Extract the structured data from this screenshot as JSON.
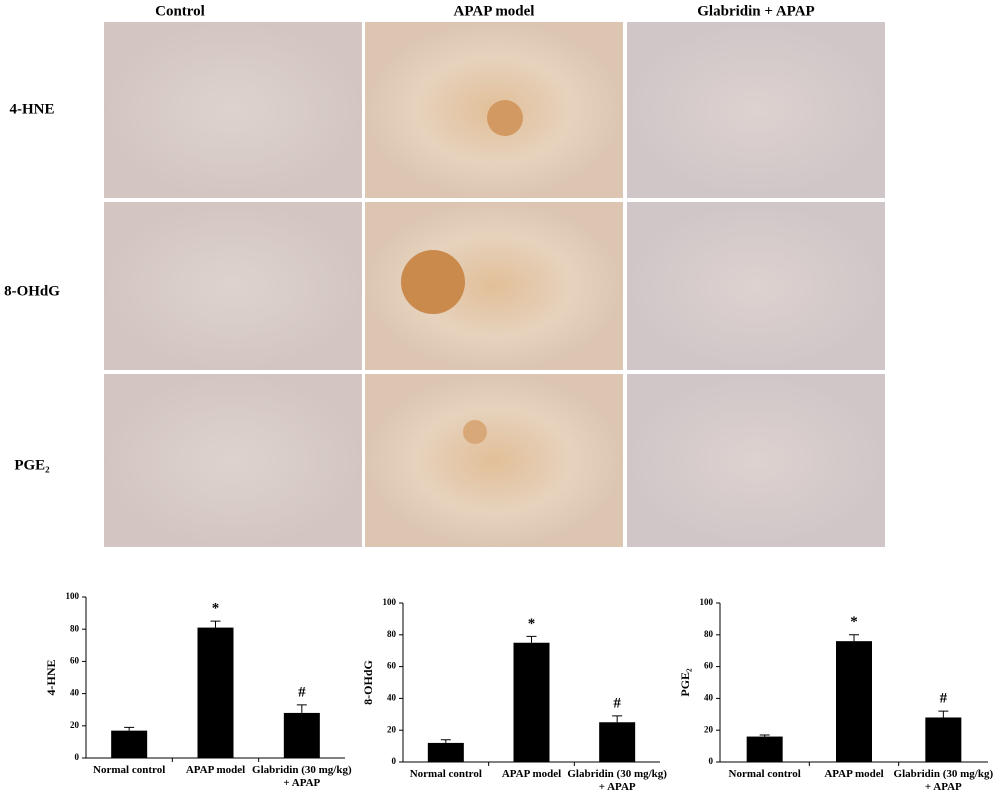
{
  "figure": {
    "columns": [
      "Control",
      "APAP model",
      "Glabridin + APAP"
    ],
    "rows": [
      "4-HNE",
      "8-OHdG",
      "PGE₂"
    ]
  },
  "chart_data": [
    {
      "type": "bar",
      "ylabel": "4-HNE",
      "categories": [
        "Normal control",
        "APAP model",
        "Glabridin (30 mg/kg) + APAP"
      ],
      "values": [
        17,
        81,
        28
      ],
      "errors": [
        2,
        4,
        5
      ],
      "color": "#000000",
      "ylim": [
        0,
        100
      ],
      "yticks": [
        0,
        20,
        40,
        60,
        80,
        100
      ],
      "annotations": [
        {
          "category": "APAP model",
          "text": "*"
        },
        {
          "category": "Glabridin (30 mg/kg) + APAP",
          "text": "#"
        }
      ]
    },
    {
      "type": "bar",
      "ylabel": "8-OHdG",
      "categories": [
        "Normal control",
        "APAP model",
        "Glabridin (30 mg/kg) + APAP"
      ],
      "values": [
        12,
        75,
        25
      ],
      "errors": [
        2,
        4,
        4
      ],
      "color": "#000000",
      "ylim": [
        0,
        100
      ],
      "yticks": [
        0,
        20,
        40,
        60,
        80,
        100
      ],
      "annotations": [
        {
          "category": "APAP model",
          "text": "*"
        },
        {
          "category": "Glabridin (30 mg/kg) + APAP",
          "text": "#"
        }
      ]
    },
    {
      "type": "bar",
      "ylabel": "PGE₂",
      "categories": [
        "Normal control",
        "APAP model",
        "Glabridin (30 mg/kg) + APAP"
      ],
      "values": [
        16,
        76,
        28
      ],
      "errors": [
        1,
        4,
        4
      ],
      "color": "#000000",
      "ylim": [
        0,
        100
      ],
      "yticks": [
        0,
        20,
        40,
        60,
        80,
        100
      ],
      "annotations": [
        {
          "category": "APAP model",
          "text": "*"
        },
        {
          "category": "Glabridin (30 mg/kg) + APAP",
          "text": "#"
        }
      ]
    }
  ]
}
